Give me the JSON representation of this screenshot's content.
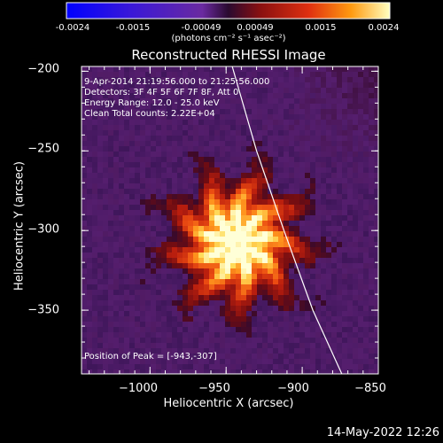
{
  "colorbar": {
    "tick_labels": [
      "-0.0024",
      "-0.0015",
      "-0.00049",
      "0.00049",
      "0.0015",
      "0.0024"
    ],
    "units": "(photons cm⁻² s⁻¹ asec⁻²)",
    "range": [
      -0.0024,
      0.0024
    ]
  },
  "annotations": {
    "time_range": "9-Apr-2014 21:19:56.000 to 21:25:56.000",
    "detectors": "Detectors: 3F 4F 5F 6F 7F 8F, Att 0",
    "energy_range": "Energy Range: 12.0 - 25.0 keV",
    "method_counts": "Clean     Total counts: 2.22E+04",
    "peak_position": "Position of Peak = [-943,-307]"
  },
  "footer_date": "14-May-2022 12:26",
  "chart_data": {
    "type": "heatmap",
    "title": "Reconstructed RHESSI Image",
    "xlabel": "Heliocentric X (arcsec)",
    "ylabel": "Heliocentric Y (arcsec)",
    "xlim": [
      -1045,
      -850
    ],
    "ylim": [
      -390,
      -197
    ],
    "x_ticks": [
      -1000,
      -950,
      -900,
      -850
    ],
    "x_tick_labels": [
      "−1000",
      "−950",
      "−900",
      "−850"
    ],
    "y_ticks": [
      -200,
      -250,
      -300,
      -350
    ],
    "y_tick_labels": [
      "−200",
      "−250",
      "−300",
      "−350"
    ],
    "peak": [
      -943,
      -307
    ],
    "colormap": "blue-purple-red-yellow-white",
    "limb_curve": [
      [
        -946,
        -197
      ],
      [
        -930,
        -250
      ],
      [
        -912,
        -300
      ],
      [
        -893,
        -350
      ],
      [
        -874,
        -390
      ]
    ]
  }
}
